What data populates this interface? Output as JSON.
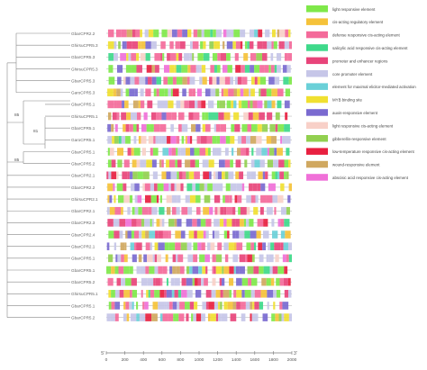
{
  "figure": {
    "gene_labels": [
      "GbarCPR2.2",
      "GhirsuCPR5.3",
      "GbarCPR5.3",
      "GhirsuCPR5.3",
      "GbarCPR5.3",
      "GaroCPR5.3",
      "GbarCPR5.1",
      "GhirsuCPR5.1",
      "GbarCPR5.1",
      "GaroCPR5.1",
      "GbarCPR5.1",
      "GbarCPR5.2",
      "GbarCPR2.1",
      "GbarCPR2.2",
      "GhirsuCPR2.1",
      "GbarCPR2.1",
      "GbarCPR2.3",
      "GbarCPR2.4",
      "GbarCPR2.1",
      "GbarCPR5.1",
      "GbarCPR5.1",
      "GbarCPR5.2",
      "GhirsuCPR5.1",
      "GbarCPR5.1",
      "GbarCPR5.2"
    ],
    "bootstrap_values": [
      "85",
      "81",
      "85"
    ],
    "axis": {
      "start_label": "5'",
      "end_label": "3'",
      "ticks": [
        "0",
        "200",
        "400",
        "600",
        "800",
        "1000",
        "1200",
        "1400",
        "1600",
        "1800",
        "2000"
      ],
      "max": 2000
    },
    "legend": [
      {
        "label": "light responsive element",
        "color": "#7fe84a"
      },
      {
        "label": "cis-acting regulatory element",
        "color": "#f5c23a"
      },
      {
        "label": "defense  responsive cis-acting element",
        "color": "#f46a9a"
      },
      {
        "label": "salicylic acid responsive cis-acting element",
        "color": "#3ed98a"
      },
      {
        "label": "promoter and enhancer regions",
        "color": "#e8447a"
      },
      {
        "label": "core promoter element",
        "color": "#c6c6e8"
      },
      {
        "label": "element for maximal elicitor-mediated activation",
        "color": "#6ad0d8"
      },
      {
        "label": "MYB binding site",
        "color": "#f0e030"
      },
      {
        "label": "auxin-responsive element",
        "color": "#7a6ad0"
      },
      {
        "label": "light responsive cis-acting element",
        "color": "#f8d0c8"
      },
      {
        "label": "gibberellin-responsive element",
        "color": "#92d050"
      },
      {
        "label": "low-temperature responsive cis-acting element",
        "color": "#e82040"
      },
      {
        "label": "wound-responsive element",
        "color": "#d0a860"
      },
      {
        "label": "abscisic acid responsive cis-acting element",
        "color": "#f070d8"
      }
    ]
  }
}
